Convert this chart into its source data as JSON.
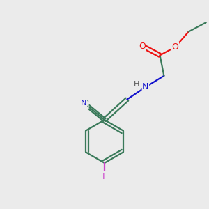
{
  "background_color": "#ebebeb",
  "bond_color": "#3a7a5a",
  "atom_colors": {
    "O": "#ee1111",
    "N": "#1111cc",
    "F": "#cc44cc",
    "C": "#3a7a5a",
    "H": "#666666"
  },
  "figsize": [
    3.0,
    3.0
  ],
  "dpi": 100
}
